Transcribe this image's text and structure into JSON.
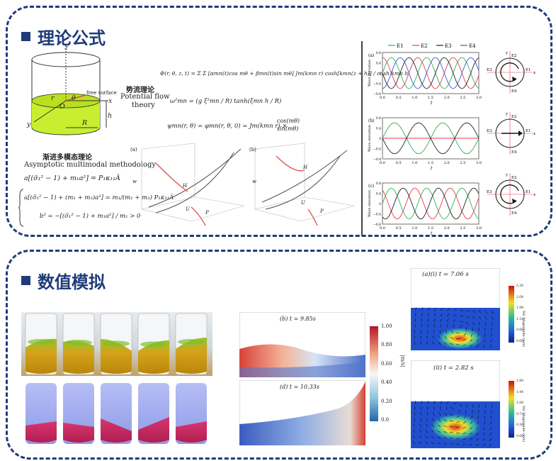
{
  "sections": [
    {
      "title": "理论公式"
    },
    {
      "title": "数值模拟"
    }
  ],
  "theory": {
    "cylinder_labels": {
      "z": "z",
      "x": "x",
      "y": "y",
      "r": "r",
      "theta": "θ",
      "o": "O",
      "h": "h",
      "R": "R",
      "free_surface": "free surface"
    },
    "potential_flow_cn": "势流理论",
    "potential_flow_en1": "Potential flow",
    "potential_flow_en2": "theory",
    "asymptotic_cn": "渐进多模态理论",
    "asymptotic_en": "Asymptotic multimodal methodology",
    "eq_phi": "Φ(r, θ, z, t) = Σ Σ [αmn(t)cos mθ + βmn(t)sin mθ] Jm(kmn r) cosh[kmn(z + h)] / cosh kmn h",
    "eq_omega": "ω²mn = (g ξ²mn / R) tanh(ξmn h / R)",
    "eq_psi_left": "ψmn(r, θ) = φmn(r, θ, 0) = Jm(kmn r) ×",
    "eq_psi_cos": "cos(mθ)",
    "eq_psi_sin": "sin(mθ)",
    "eq_a1": "a[(σ̄₁² − 1) + m₁a²] = P₁κ₁₁A̅",
    "eq_a2": "a[(σ̄₁² − 1) + (m₁ + m₃)a²] = m₁/(m₁ + m₃) P₁κ₁₁A̅",
    "eq_a3": "b² = −[(σ̄₁² − 1) + m₁a²] / m₁ > 0",
    "surface_a_label": "(a)",
    "surface_b_label": "(b)",
    "surface_curve_labels": [
      "H",
      "U",
      "P"
    ],
    "axis_w": "w"
  },
  "wave_chart": {
    "legend": [
      "E1",
      "E2",
      "E3",
      "E4"
    ],
    "colors": {
      "E1": "#2bb24c",
      "E2": "#e8384f",
      "E3": "#222222",
      "E4": "#3a55d6"
    },
    "ylabel": "Wave elevation",
    "xlabel": "t",
    "panels": [
      "(a)",
      "(b)",
      "(c)"
    ],
    "x_ticks": [
      "0.0",
      "0.5",
      "1.0",
      "1.5",
      "2.0",
      "2.5",
      "3.0"
    ],
    "y_ticks": [
      "0.8",
      "0.6",
      "0.4",
      "0.2",
      "0",
      "−0.2",
      "−0.4",
      "−0.6",
      "−0.8"
    ],
    "compass": {
      "x": "x",
      "y": "y",
      "E1": "E1",
      "E2": "E2",
      "E3": "E3",
      "E4": "E4"
    }
  },
  "simulation": {
    "b_label": "(b) t = 9.85s",
    "d_label": "(d) t = 10.33s",
    "colorbar_ticks": [
      "1.00",
      "0.80",
      "0.60",
      "0.40",
      "0.20",
      "0.0"
    ],
    "colorbar_unit": "|m/s|",
    "ai_label": "(a)(i)  t = 7.06 s",
    "aii_label": "(ii) t = 2.82 s",
    "vel_cb1": [
      "3.30",
      "2.64",
      "1.98",
      "1.32",
      "0.66",
      "0.00"
    ],
    "vel_cb2": [
      "1.80",
      "1.44",
      "1.08",
      "0.72",
      "0.36",
      "0.00"
    ],
    "vel_title": "Vel Magnitude (m/s)"
  }
}
